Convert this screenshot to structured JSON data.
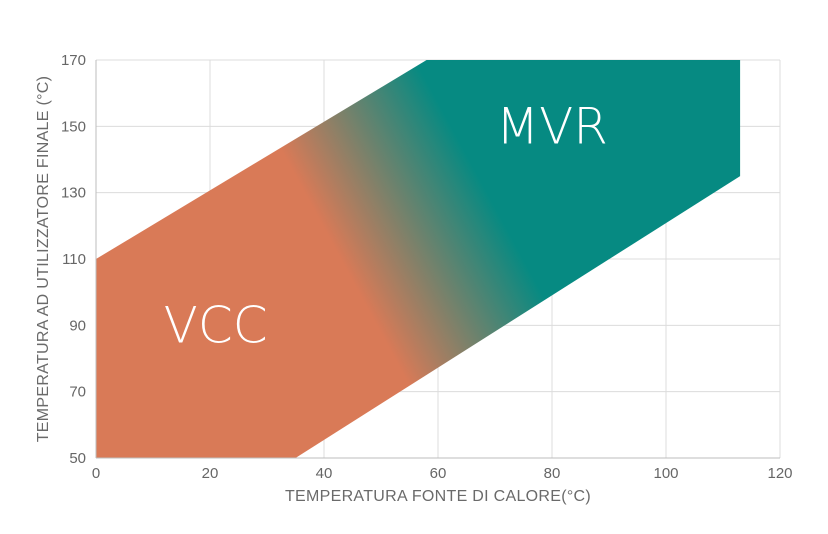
{
  "chart_data": {
    "type": "area",
    "title": "",
    "xlabel": "TEMPERATURA FONTE DI CALORE(°C)",
    "ylabel": "TEMPERATURA AD UTILIZZATORE FINALE (°C)",
    "xlim": [
      0,
      120
    ],
    "ylim": [
      50,
      170
    ],
    "xticks": [
      0,
      20,
      40,
      60,
      80,
      100,
      120
    ],
    "yticks": [
      50,
      70,
      90,
      110,
      130,
      150,
      170
    ],
    "grid": true,
    "region": {
      "polygon": [
        {
          "x": 0,
          "y": 50
        },
        {
          "x": 0,
          "y": 110
        },
        {
          "x": 58,
          "y": 170
        },
        {
          "x": 113,
          "y": 170
        },
        {
          "x": 113,
          "y": 135
        },
        {
          "x": 35,
          "y": 50
        }
      ],
      "gradient": {
        "from_color": "#d97a57",
        "to_color": "#068a82"
      }
    },
    "annotations": [
      {
        "text": "VCC",
        "x": 21,
        "y": 90
      },
      {
        "text": "MVR",
        "x": 80,
        "y": 150
      }
    ]
  }
}
